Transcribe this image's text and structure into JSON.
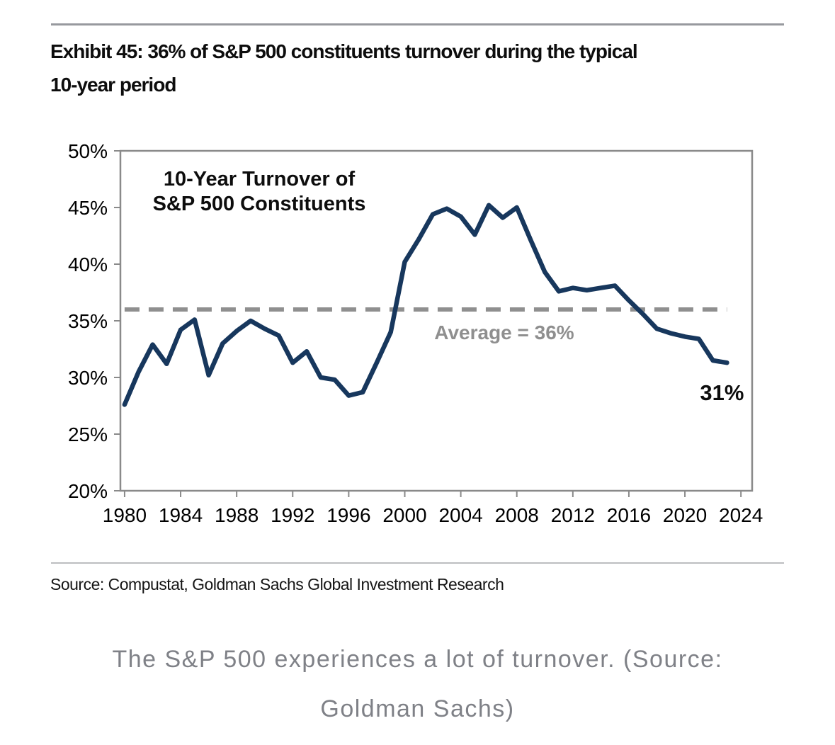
{
  "page": {
    "title_lines": [
      "Exhibit 45: 36% of S&P 500 constituents turnover during the typical",
      "10-year period"
    ],
    "source_line": "Source: Compustat, Goldman Sachs Global Investment Research",
    "caption_lines": [
      "The S&P 500 experiences a lot of turnover. (Source:",
      "Goldman Sachs)"
    ]
  },
  "chart_data": {
    "type": "line",
    "title_annotation_lines": [
      "10-Year Turnover of",
      "S&P 500 Constituents"
    ],
    "series": [
      {
        "name": "10-Year Turnover of S&P 500 Constituents",
        "x": [
          1980,
          1981,
          1982,
          1983,
          1984,
          1985,
          1986,
          1987,
          1988,
          1989,
          1990,
          1991,
          1992,
          1993,
          1994,
          1995,
          1996,
          1997,
          1998,
          1999,
          2000,
          2001,
          2002,
          2003,
          2004,
          2005,
          2006,
          2007,
          2008,
          2009,
          2010,
          2011,
          2012,
          2013,
          2014,
          2015,
          2016,
          2017,
          2018,
          2019,
          2020,
          2021,
          2022,
          2023
        ],
        "values": [
          27.6,
          30.5,
          32.9,
          31.2,
          34.2,
          35.1,
          30.2,
          33.0,
          34.1,
          35.0,
          34.3,
          33.7,
          31.3,
          32.3,
          30.0,
          29.8,
          28.4,
          28.7,
          31.3,
          34.0,
          40.2,
          42.2,
          44.4,
          44.9,
          44.2,
          42.6,
          45.2,
          44.1,
          45.0,
          42.1,
          39.3,
          37.6,
          37.9,
          37.7,
          37.9,
          38.1,
          36.8,
          35.6,
          34.3,
          33.9,
          33.6,
          33.4,
          31.5,
          31.3
        ]
      }
    ],
    "average_line": {
      "value": 36,
      "label": "Average = 36%",
      "x_start": 1980,
      "x_end": 2023
    },
    "end_label": {
      "text": "31%",
      "x": 2023,
      "value": 31.3
    },
    "x_ticks": [
      {
        "label": "1980",
        "value": 1980
      },
      {
        "label": "1984",
        "value": 1984
      },
      {
        "label": "1988",
        "value": 1988
      },
      {
        "label": "1992",
        "value": 1992
      },
      {
        "label": "1996",
        "value": 1996
      },
      {
        "label": "2000",
        "value": 2000
      },
      {
        "label": "2004",
        "value": 2004
      },
      {
        "label": "2008",
        "value": 2008
      },
      {
        "label": "2012",
        "value": 2012
      },
      {
        "label": "2016",
        "value": 2016
      },
      {
        "label": "2020",
        "value": 2020
      },
      {
        "label": "2024",
        "value": 2024
      }
    ],
    "y_ticks": [
      {
        "label": "50%",
        "value": 50
      },
      {
        "label": "45%",
        "value": 45
      },
      {
        "label": "40%",
        "value": 40
      },
      {
        "label": "35%",
        "value": 35
      },
      {
        "label": "30%",
        "value": 30
      },
      {
        "label": "25%",
        "value": 25
      },
      {
        "label": "20%",
        "value": 20
      }
    ],
    "xlim": [
      1979.7,
      2024.8
    ],
    "ylim": [
      20,
      50
    ],
    "grid": false,
    "legend": "none",
    "colors": {
      "line": "#17375D",
      "average": "#8F8F8F",
      "axis": "#8A8A8A",
      "tick_text": "#000000",
      "annotation_text": "#0d0d0d",
      "average_text": "#8F8F8F"
    }
  }
}
